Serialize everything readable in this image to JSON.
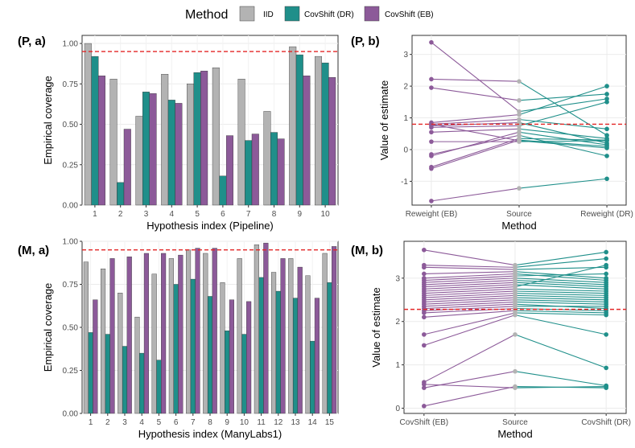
{
  "legend": {
    "title": "Method",
    "items": [
      {
        "label": "IID",
        "color": "#b3b3b3"
      },
      {
        "label": "CovShift (DR)",
        "color": "#1f8f8a"
      },
      {
        "label": "CovShift (EB)",
        "color": "#8c5a99"
      }
    ]
  },
  "colors": {
    "iid": "#b3b3b3",
    "dr": "#1f8f8a",
    "eb": "#8c5a99",
    "ref": "#e32626",
    "source_pt": "#b3b3b3"
  },
  "chart_data": [
    {
      "id": "Pa",
      "tag": "(P, a)",
      "type": "bar",
      "xlabel": "Hypothesis index (Pipeline)",
      "ylabel": "Empirical coverage",
      "ylim": [
        0,
        1.05
      ],
      "yticks": [
        "0.00",
        "0.25",
        "0.50",
        "0.75",
        "1.00"
      ],
      "categories": [
        "1",
        "2",
        "3",
        "4",
        "5",
        "6",
        "7",
        "8",
        "9",
        "10"
      ],
      "reference": 0.95,
      "series": [
        {
          "name": "IID",
          "values": [
            1.0,
            0.78,
            0.55,
            0.81,
            0.75,
            0.85,
            0.78,
            0.58,
            0.98,
            0.92
          ]
        },
        {
          "name": "CovShift (DR)",
          "values": [
            0.92,
            0.14,
            0.7,
            0.65,
            0.82,
            0.18,
            0.4,
            0.45,
            0.93,
            0.88
          ]
        },
        {
          "name": "CovShift (EB)",
          "values": [
            0.8,
            0.47,
            0.69,
            0.63,
            0.83,
            0.43,
            0.44,
            0.41,
            0.8,
            0.79
          ]
        }
      ]
    },
    {
      "id": "Pb",
      "tag": "(P, b)",
      "type": "line",
      "xlabel": "Method",
      "ylabel": "Value of estimate",
      "ylim": [
        -1.75,
        3.6
      ],
      "yticks": [
        "-1",
        "0",
        "1",
        "2",
        "3"
      ],
      "categories": [
        "Reweight (EB)",
        "Source",
        "Reweight (DR)"
      ],
      "reference": 0.8,
      "source": [
        2.15,
        1.55,
        1.2,
        1.1,
        0.95,
        0.85,
        0.75,
        0.65,
        0.55,
        0.45,
        0.35,
        0.3,
        0.28,
        0.25,
        -1.22
      ],
      "left": [
        2.22,
        1.95,
        3.38,
        0.85,
        0.8,
        0.75,
        0.7,
        0.55,
        -0.2,
        -0.15,
        -0.55,
        -0.6,
        0.8,
        0.25,
        -1.62
      ],
      "right": [
        0.45,
        1.75,
        1.6,
        2.0,
        0.65,
        0.2,
        1.5,
        0.35,
        0.15,
        -0.2,
        0.3,
        0.1,
        0.05,
        0.28,
        -0.92
      ]
    },
    {
      "id": "Ma",
      "tag": "(M, a)",
      "type": "bar",
      "xlabel": "Hypothesis index (ManyLabs1)",
      "ylabel": "Empirical coverage",
      "ylim": [
        0,
        1.0
      ],
      "yticks": [
        "0.00",
        "0.25",
        "0.50",
        "0.75",
        "1.00"
      ],
      "categories": [
        "1",
        "2",
        "3",
        "4",
        "5",
        "6",
        "7",
        "8",
        "9",
        "10",
        "11",
        "12",
        "13",
        "14",
        "15"
      ],
      "reference": 0.95,
      "series": [
        {
          "name": "IID",
          "values": [
            0.88,
            0.84,
            0.7,
            0.56,
            0.81,
            0.9,
            0.95,
            0.93,
            0.76,
            0.9,
            0.98,
            0.82,
            0.9,
            0.8,
            0.93
          ]
        },
        {
          "name": "CovShift (DR)",
          "values": [
            0.47,
            0.46,
            0.39,
            0.35,
            0.31,
            0.75,
            0.78,
            0.68,
            0.48,
            0.46,
            0.79,
            0.71,
            0.67,
            0.42,
            0.76
          ]
        },
        {
          "name": "CovShift (EB)",
          "values": [
            0.66,
            0.9,
            0.91,
            0.93,
            0.93,
            0.92,
            0.96,
            0.96,
            0.66,
            0.65,
            0.99,
            0.9,
            0.85,
            0.67,
            0.97
          ]
        }
      ]
    },
    {
      "id": "Mb",
      "tag": "(M, b)",
      "type": "line",
      "xlabel": "Method",
      "ylabel": "Value of estimate",
      "ylim": [
        -0.12,
        3.85
      ],
      "yticks": [
        "0",
        "1",
        "2",
        "3"
      ],
      "categories": [
        "CovShift (EB)",
        "Source",
        "CovShift (DR)"
      ],
      "reference": 2.28,
      "source": [
        3.3,
        3.25,
        3.2,
        3.15,
        3.1,
        3.05,
        3.0,
        2.95,
        2.9,
        2.85,
        2.8,
        2.75,
        2.7,
        2.65,
        2.6,
        2.55,
        2.5,
        2.45,
        2.4,
        2.35,
        2.3,
        2.25,
        2.2,
        2.15,
        1.7,
        0.85,
        0.5,
        0.47
      ],
      "left": [
        3.65,
        3.3,
        3.25,
        3.1,
        3.0,
        2.95,
        2.9,
        2.85,
        2.8,
        2.75,
        2.7,
        2.65,
        2.6,
        2.55,
        2.5,
        2.45,
        2.4,
        2.35,
        2.3,
        2.25,
        2.2,
        2.1,
        1.7,
        1.45,
        0.6,
        0.47,
        0.05,
        0.55
      ],
      "right": [
        3.6,
        3.45,
        3.25,
        3.0,
        2.95,
        3.1,
        2.9,
        2.85,
        2.8,
        2.75,
        3.3,
        2.7,
        2.65,
        2.6,
        2.55,
        2.5,
        2.45,
        2.4,
        2.3,
        2.35,
        2.25,
        2.2,
        2.15,
        1.7,
        0.93,
        0.52,
        0.47,
        0.5
      ]
    }
  ]
}
